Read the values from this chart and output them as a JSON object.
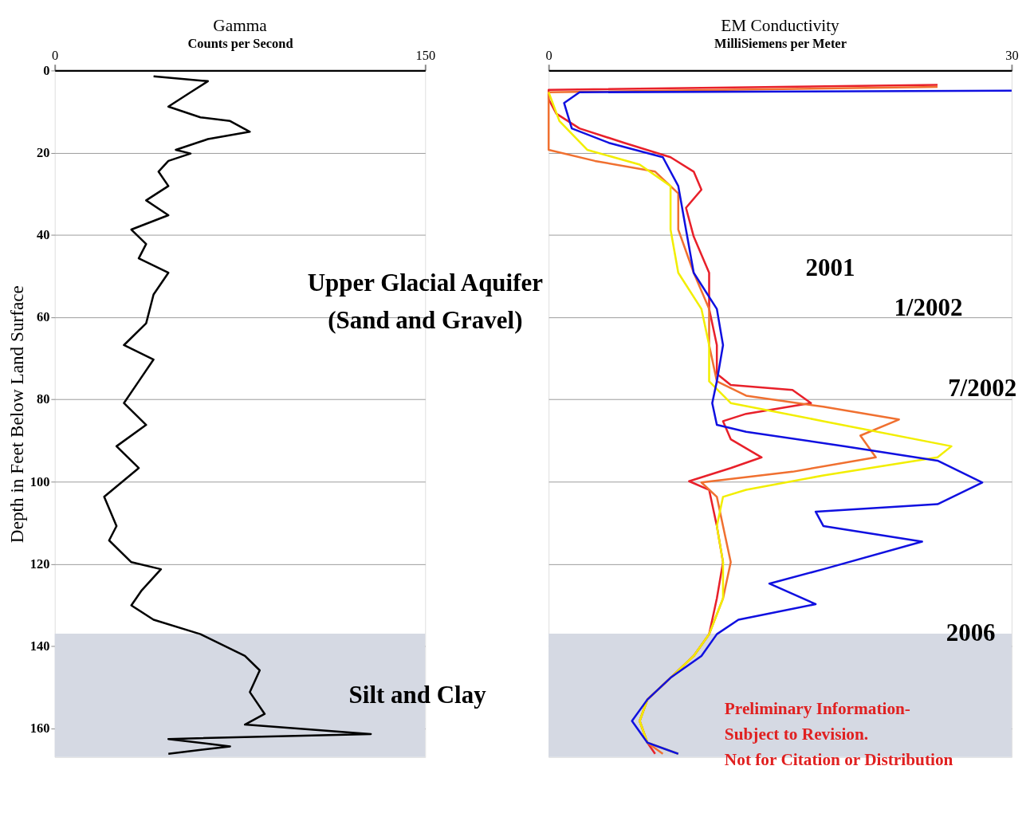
{
  "chart_data": [
    {
      "type": "line",
      "orientation": "horizontal",
      "title": "Gamma",
      "xlabel": "Counts per Second",
      "ylabel": "Depth in Feet Below Land Surface",
      "xlim": [
        0,
        150
      ],
      "xticks": [
        0,
        150
      ],
      "ylim": [
        167,
        0
      ],
      "yticks": [
        0,
        20,
        40,
        60,
        80,
        100,
        120,
        140,
        160
      ],
      "grid": "y",
      "series": [
        {
          "color": "#000000",
          "x": [
            1.4,
            2.6,
            5.3,
            8.8,
            11.4,
            12.3,
            14.9,
            16.7,
            19.3,
            20.2,
            22.0,
            24.6,
            28.1,
            31.6,
            35.2,
            38.7,
            42.2,
            45.7,
            49.2,
            54.5,
            61.5,
            66.8,
            70.3,
            75.6,
            80.9,
            86.2,
            91.4,
            96.7,
            103.7,
            110.8,
            114.3,
            119.6,
            121.3,
            126.6,
            130.1,
            133.6,
            137.1,
            142.4,
            145.9,
            151.2,
            156.5,
            159.1,
            161.4,
            162.6,
            164.4,
            166.2
          ],
          "values": [
            40,
            62,
            55,
            46,
            59,
            71,
            79,
            62,
            49,
            55,
            46,
            42,
            46,
            37,
            46,
            31,
            37,
            34,
            46,
            40,
            37,
            28,
            40,
            34,
            28,
            37,
            25,
            34,
            20,
            25,
            22,
            31,
            43,
            35,
            31,
            40,
            59,
            77,
            83,
            79,
            85,
            77,
            128,
            46,
            71,
            46
          ]
        }
      ],
      "bands": [
        {
          "axis": "y",
          "from": 137,
          "to": 167,
          "color": "#d5d9e3",
          "label": "Silt and Clay"
        }
      ],
      "annotations": [
        "Upper Glacial Aquifer\n(Sand and Gravel)"
      ]
    },
    {
      "type": "line",
      "orientation": "horizontal",
      "title": "EM Conductivity",
      "xlabel": "MilliSiemens per Meter",
      "xlim": [
        0,
        30
      ],
      "xticks": [
        0,
        30
      ],
      "ylim": [
        167,
        0
      ],
      "yticks": [
        0,
        20,
        40,
        60,
        80,
        100,
        120,
        140,
        160
      ],
      "grid": "y",
      "tick_labels": "x",
      "series": [
        {
          "name": "2001",
          "color": "#e8202a",
          "x": [
            3.5,
            4.7,
            7.0,
            10.5,
            14.1,
            17.6,
            21.1,
            24.6,
            29.0,
            33.4,
            40.4,
            49.2,
            58.0,
            66.8,
            73.8,
            76.5,
            77.7,
            80.9,
            83.5,
            85.3,
            89.7,
            94.1,
            96.7,
            99.9,
            102.0,
            110.8,
            119.6,
            128.4,
            137.1,
            142.4,
            147.7,
            153.0,
            158.2,
            163.5,
            166.2
          ],
          "values": [
            25.2,
            0,
            0,
            0.5,
            2.0,
            4.9,
            7.9,
            9.4,
            9.9,
            8.9,
            9.4,
            10.4,
            10.4,
            10.9,
            10.9,
            11.8,
            15.8,
            17.0,
            12.8,
            11.3,
            11.8,
            13.8,
            11.8,
            9.1,
            10.4,
            10.9,
            11.3,
            10.9,
            10.4,
            9.4,
            7.9,
            6.4,
            5.9,
            6.4,
            6.9
          ]
        },
        {
          "name": "1/2002",
          "color": "#f07030",
          "x": [
            4.0,
            5.3,
            12.3,
            19.3,
            22.0,
            24.6,
            29.9,
            38.7,
            49.2,
            58.0,
            66.8,
            75.6,
            79.1,
            81.8,
            84.9,
            88.8,
            94.1,
            97.6,
            100.2,
            103.7,
            110.8,
            119.6,
            128.4,
            137.1,
            142.4,
            147.7,
            153.0,
            158.2,
            163.5,
            166.2
          ],
          "values": [
            25.2,
            0,
            0,
            0,
            3.0,
            6.9,
            8.4,
            8.4,
            9.4,
            10.4,
            10.4,
            10.9,
            12.8,
            17.8,
            22.7,
            20.2,
            21.2,
            15.8,
            9.9,
            10.9,
            11.3,
            11.8,
            11.3,
            10.4,
            9.4,
            7.9,
            6.4,
            5.9,
            6.4,
            7.4
          ]
        },
        {
          "name": "7/2002",
          "color": "#f2ee00",
          "x": [
            5.3,
            12.3,
            19.3,
            22.9,
            28.1,
            38.7,
            49.2,
            58.0,
            66.8,
            75.6,
            80.9,
            85.3,
            91.4,
            94.1,
            98.5,
            102.0,
            103.7,
            110.8,
            119.6,
            128.4,
            137.1,
            142.4,
            147.7,
            153.0,
            158.2,
            163.5,
            166.2
          ],
          "values": [
            0,
            0.7,
            2.5,
            5.9,
            7.9,
            7.9,
            8.4,
            9.9,
            10.4,
            10.4,
            11.8,
            17.8,
            26.1,
            25.2,
            17.8,
            12.8,
            11.3,
            10.9,
            11.3,
            11.3,
            10.4,
            9.4,
            7.9,
            6.4,
            5.9,
            6.4,
            8.4
          ]
        },
        {
          "name": "2006",
          "color": "#1010e0",
          "x": [
            4.9,
            5.3,
            7.9,
            14.1,
            17.6,
            21.1,
            28.1,
            38.7,
            49.2,
            58.0,
            66.8,
            75.6,
            80.9,
            86.2,
            87.9,
            91.4,
            94.9,
            100.2,
            105.5,
            107.3,
            110.8,
            114.6,
            121.3,
            124.8,
            129.8,
            133.6,
            137.1,
            142.4,
            147.7,
            153.0,
            158.2,
            163.5,
            166.2
          ],
          "values": [
            30,
            2.0,
            1.0,
            1.5,
            3.9,
            7.4,
            8.4,
            8.9,
            9.4,
            10.9,
            11.3,
            10.9,
            10.6,
            10.9,
            12.8,
            19.2,
            25.2,
            28.1,
            25.2,
            17.3,
            17.8,
            24.2,
            17.8,
            14.3,
            17.3,
            12.3,
            10.9,
            9.9,
            7.9,
            6.4,
            5.4,
            6.4,
            8.4
          ]
        }
      ],
      "bands": [
        {
          "axis": "y",
          "from": 137,
          "to": 167,
          "color": "#d5d9e3"
        }
      ],
      "annotations": [
        "Preliminary Information-\nSubject to Revision.\nNot for Citation or Distribution"
      ]
    }
  ]
}
